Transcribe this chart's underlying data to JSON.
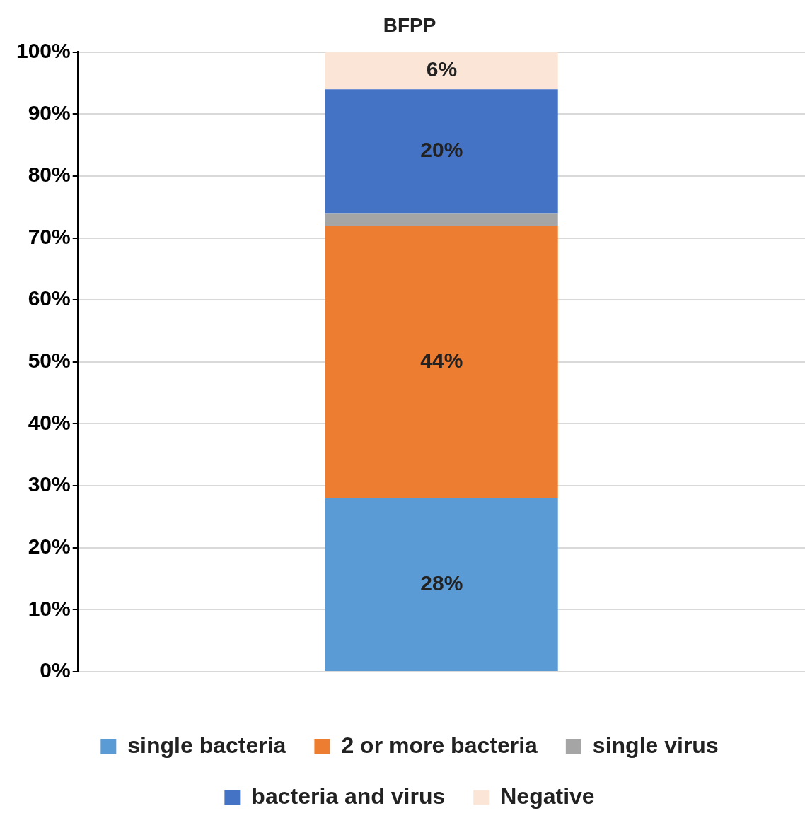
{
  "chart_data": {
    "type": "bar",
    "title": "BFPP",
    "categories": [
      null
    ],
    "stacked": true,
    "ylim": [
      0,
      100
    ],
    "yticks": [
      {
        "value": 0,
        "label": "0%"
      },
      {
        "value": 10,
        "label": "10%"
      },
      {
        "value": 20,
        "label": "20%"
      },
      {
        "value": 30,
        "label": "30%"
      },
      {
        "value": 40,
        "label": "40%"
      },
      {
        "value": 50,
        "label": "50%"
      },
      {
        "value": 60,
        "label": "60%"
      },
      {
        "value": 70,
        "label": "70%"
      },
      {
        "value": 80,
        "label": "80%"
      },
      {
        "value": 90,
        "label": "90%"
      },
      {
        "value": 100,
        "label": "100%"
      }
    ],
    "grid": "y",
    "legend": "bottom",
    "series": [
      {
        "name": "single bacteria",
        "color": "#5b9bd5",
        "values": [
          28
        ],
        "value_labels": [
          "28%"
        ]
      },
      {
        "name": "2 or more bacteria",
        "color": "#ed7d31",
        "values": [
          44
        ],
        "value_labels": [
          "44%"
        ]
      },
      {
        "name": "single virus",
        "color": "#a5a5a5",
        "values": [
          2
        ],
        "value_labels": [
          null
        ]
      },
      {
        "name": "bacteria and virus",
        "color": "#4472c4",
        "values": [
          20
        ],
        "value_labels": [
          "20%"
        ]
      },
      {
        "name": "Negative",
        "color": "#fbe5d6",
        "values": [
          6
        ],
        "value_labels": [
          "6%"
        ]
      }
    ]
  }
}
